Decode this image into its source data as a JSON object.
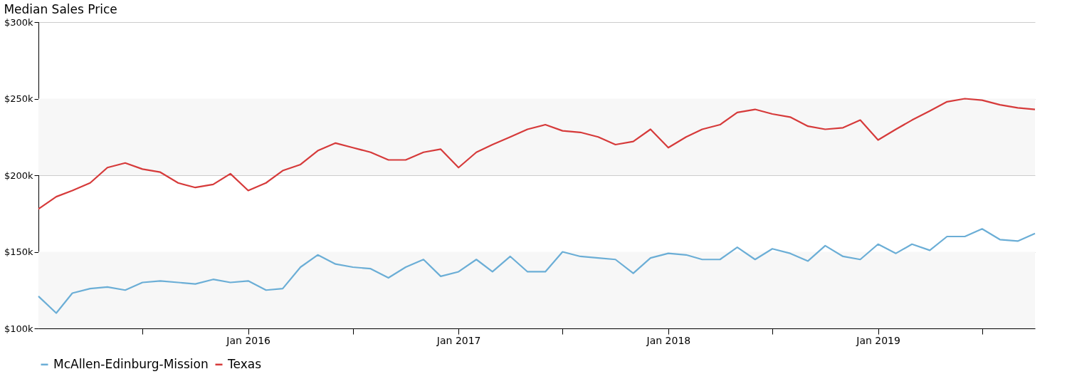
{
  "chart_data": {
    "type": "line",
    "title": "Median Sales Price",
    "x": [
      "2015-01",
      "2015-02",
      "2015-03",
      "2015-04",
      "2015-05",
      "2015-06",
      "2015-07",
      "2015-08",
      "2015-09",
      "2015-10",
      "2015-11",
      "2015-12",
      "2016-01",
      "2016-02",
      "2016-03",
      "2016-04",
      "2016-05",
      "2016-06",
      "2016-07",
      "2016-08",
      "2016-09",
      "2016-10",
      "2016-11",
      "2016-12",
      "2017-01",
      "2017-02",
      "2017-03",
      "2017-04",
      "2017-05",
      "2017-06",
      "2017-07",
      "2017-08",
      "2017-09",
      "2017-10",
      "2017-11",
      "2017-12",
      "2018-01",
      "2018-02",
      "2018-03",
      "2018-04",
      "2018-05",
      "2018-06",
      "2018-07",
      "2018-08",
      "2018-09",
      "2018-10",
      "2018-11",
      "2018-12",
      "2019-01",
      "2019-02",
      "2019-03",
      "2019-04",
      "2019-05",
      "2019-06",
      "2019-07",
      "2019-08",
      "2019-09",
      "2019-10"
    ],
    "series": [
      {
        "name": "McAllen-Edinburg-Mission",
        "color": "#6baed6",
        "values": [
          121000,
          110000,
          123000,
          126000,
          127000,
          125000,
          130000,
          131000,
          130000,
          129000,
          132000,
          130000,
          131000,
          125000,
          126000,
          140000,
          148000,
          142000,
          140000,
          139000,
          133000,
          140000,
          145000,
          134000,
          137000,
          145000,
          137000,
          147000,
          137000,
          137000,
          150000,
          147000,
          146000,
          145000,
          136000,
          146000,
          149000,
          148000,
          145000,
          145000,
          153000,
          145000,
          152000,
          149000,
          144000,
          154000,
          147000,
          145000,
          155000,
          149000,
          155000,
          151000,
          160000,
          160000,
          165000,
          158000,
          157000,
          162000
        ]
      },
      {
        "name": "Texas",
        "color": "#d63a3a",
        "values": [
          178000,
          186000,
          190000,
          195000,
          205000,
          208000,
          204000,
          202000,
          195000,
          192000,
          194000,
          201000,
          190000,
          195000,
          203000,
          207000,
          216000,
          221000,
          218000,
          215000,
          210000,
          210000,
          215000,
          217000,
          205000,
          215000,
          220000,
          225000,
          230000,
          233000,
          229000,
          228000,
          225000,
          220000,
          222000,
          230000,
          218000,
          225000,
          230000,
          233000,
          241000,
          243000,
          240000,
          238000,
          232000,
          230000,
          231000,
          236000,
          223000,
          230000,
          236000,
          242000,
          248000,
          250000,
          249000,
          246000,
          244000,
          243000
        ]
      }
    ],
    "xlim": [
      "2015-01",
      "2019-10"
    ],
    "xticks": [
      {
        "value": "2015-07",
        "label": null
      },
      {
        "value": "2016-01",
        "label": "Jan 2016"
      },
      {
        "value": "2016-07",
        "label": null
      },
      {
        "value": "2017-01",
        "label": "Jan 2017"
      },
      {
        "value": "2017-07",
        "label": null
      },
      {
        "value": "2018-01",
        "label": "Jan 2018"
      },
      {
        "value": "2018-07",
        "label": null
      },
      {
        "value": "2019-01",
        "label": "Jan 2019"
      },
      {
        "value": "2019-07",
        "label": null
      }
    ],
    "ylim": [
      100000,
      300000
    ],
    "yticks": [
      {
        "value": 100000,
        "label": "$100k"
      },
      {
        "value": 150000,
        "label": "$150k"
      },
      {
        "value": 200000,
        "label": "$200k"
      },
      {
        "value": 250000,
        "label": "$250k"
      },
      {
        "value": 300000,
        "label": "$300k"
      }
    ],
    "bands": [
      {
        "axis": "y",
        "from": 100000,
        "to": 150000,
        "color": "#f7f7f7"
      },
      {
        "axis": "y",
        "from": 200000,
        "to": 250000,
        "color": "#f7f7f7"
      }
    ],
    "grid": "y",
    "legend": "bottom",
    "line_style": "solid"
  }
}
